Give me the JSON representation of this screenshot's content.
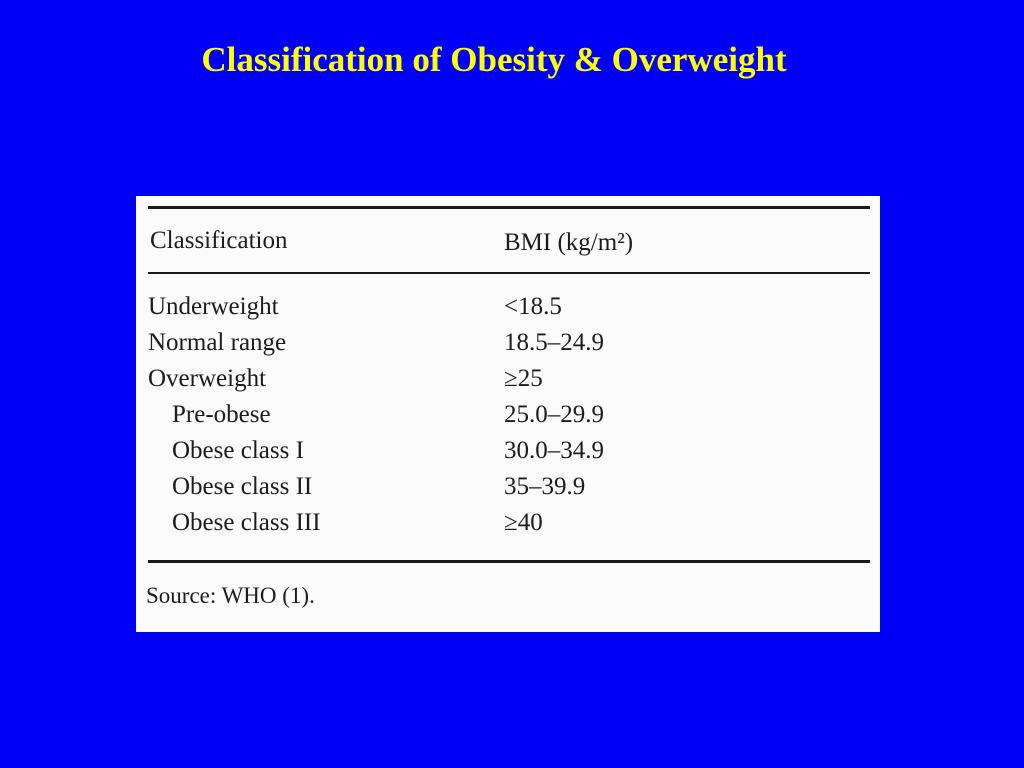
{
  "title": "Classification of Obesity & Overweight",
  "table": {
    "headers": {
      "classification": "Classification",
      "bmi": "BMI (kg/m²)"
    },
    "rows": [
      {
        "label": "Underweight",
        "value": "<18.5",
        "indent": false
      },
      {
        "label": "Normal range",
        "value": "18.5–24.9",
        "indent": false
      },
      {
        "label": "Overweight",
        "value": "≥25",
        "indent": false
      },
      {
        "label": "Pre-obese",
        "value": "25.0–29.9",
        "indent": true
      },
      {
        "label": "Obese class I",
        "value": "30.0–34.9",
        "indent": true
      },
      {
        "label": "Obese class II",
        "value": "35–39.9",
        "indent": true
      },
      {
        "label": "Obese class III",
        "value": "≥40",
        "indent": true
      }
    ],
    "source": "Source: WHO (1)."
  },
  "colors": {
    "background": "#0000f6",
    "title": "#ffff00",
    "table_background": "#fbfbfb",
    "text": "#1c1c1c"
  }
}
